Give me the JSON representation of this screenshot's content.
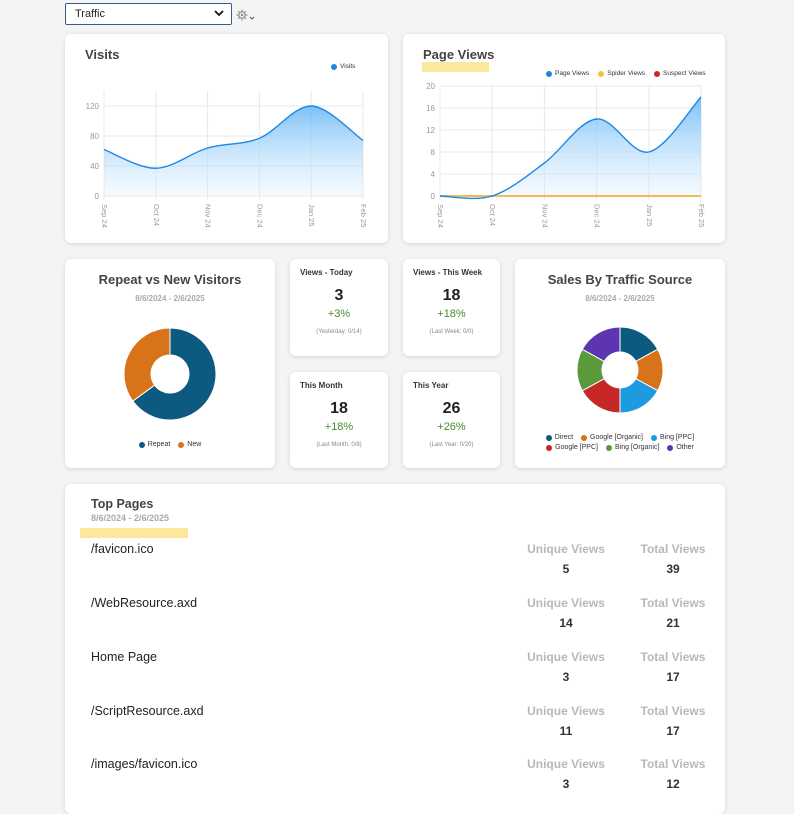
{
  "top": {
    "selector_value": "Traffic"
  },
  "visits": {
    "title": "Visits",
    "legend": [
      {
        "name": "Visits",
        "color": "#1e88e5"
      }
    ],
    "chart_data": {
      "type": "area",
      "title": "Visits",
      "categories": [
        "Sep 24",
        "Oct 24",
        "Nov 24",
        "Dec 24",
        "Jan 25",
        "Feb 25"
      ],
      "series": [
        {
          "name": "Visits",
          "values": [
            62,
            37,
            64,
            77,
            120,
            74
          ]
        }
      ],
      "yticks": [
        "0",
        "40",
        "80",
        "120"
      ],
      "ylim": [
        0,
        140
      ]
    }
  },
  "page_views": {
    "title": "Page Views",
    "legend": [
      {
        "name": "Page Views",
        "color": "#1e88e5"
      },
      {
        "name": "Spider Views",
        "color": "#f5c242"
      },
      {
        "name": "Suspect Views",
        "color": "#c62828"
      }
    ],
    "chart_data": {
      "type": "area",
      "title": "Page Views",
      "categories": [
        "Sep 24",
        "Oct 24",
        "Nov 24",
        "Dec 24",
        "Jan 25",
        "Feb 25"
      ],
      "series": [
        {
          "name": "Page Views",
          "values": [
            0,
            0,
            6,
            14,
            8,
            18
          ]
        },
        {
          "name": "Spider Views",
          "values": [
            0,
            0,
            0,
            0,
            0,
            0
          ]
        },
        {
          "name": "Suspect Views",
          "values": [
            0,
            0,
            0,
            0,
            0,
            0
          ]
        }
      ],
      "yticks": [
        "0",
        "4",
        "8",
        "12",
        "16",
        "20"
      ],
      "ylim": [
        0,
        20
      ]
    }
  },
  "repeat_new": {
    "title": "Repeat vs New Visitors",
    "date_range": "8/6/2024 - 2/6/2025",
    "chart_data": {
      "type": "pie",
      "labels": [
        "Repeat",
        "New"
      ],
      "values": [
        65,
        35
      ],
      "colors": [
        "#0d5a80",
        "#d9731a"
      ]
    }
  },
  "stats": {
    "today": {
      "label": "Views - Today",
      "value": "3",
      "change": "+3%",
      "prev": "(Yesterday: 0/14)"
    },
    "week": {
      "label": "Views - This Week",
      "value": "18",
      "change": "+18%",
      "prev": "(Last Week: 0/0)"
    },
    "month": {
      "label": "This Month",
      "value": "18",
      "change": "+18%",
      "prev": "(Last Month: 0/8)"
    },
    "year": {
      "label": "This Year",
      "value": "26",
      "change": "+26%",
      "prev": "(Last Year: 0/20)"
    }
  },
  "sales_source": {
    "title": "Sales By Traffic Source",
    "date_range": "8/6/2024 - 2/6/2025",
    "chart_data": {
      "type": "pie",
      "labels": [
        "Direct",
        "Google [Organic]",
        "Bing [PPC]",
        "Google [PPC]",
        "Bing [Organic]",
        "Other"
      ],
      "values": [
        17,
        16,
        17,
        17,
        16,
        17
      ],
      "colors": [
        "#0d5a80",
        "#d9731a",
        "#1e9ae0",
        "#c62828",
        "#5a9a3a",
        "#5e35b1"
      ]
    }
  },
  "top_pages": {
    "title": "Top Pages",
    "date_range": "8/6/2024 - 2/6/2025",
    "unique_header": "Unique Views",
    "total_header": "Total Views",
    "rows": [
      {
        "name": "/favicon.ico",
        "unique": "5",
        "total": "39"
      },
      {
        "name": "/WebResource.axd",
        "unique": "14",
        "total": "21"
      },
      {
        "name": "Home Page",
        "unique": "3",
        "total": "17"
      },
      {
        "name": "/ScriptResource.axd",
        "unique": "11",
        "total": "17"
      },
      {
        "name": "/images/favicon.ico",
        "unique": "3",
        "total": "12"
      }
    ]
  }
}
